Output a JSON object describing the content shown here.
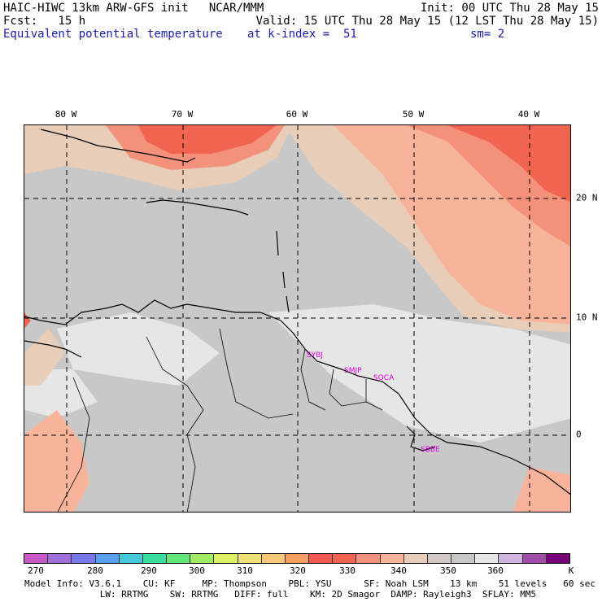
{
  "header": {
    "line1_left": "HAIC-HIWC 13km ARW-GFS init   NCAR/MMM",
    "line1_right": "Init: 00 UTC Thu 28 May 15",
    "line2_left": "Fcst:   15 h",
    "line2_right": "Valid: 15 UTC Thu 28 May 15 (12 LST Thu 28 May 15)",
    "line3_field": "Equivalent potential temperature",
    "line3_level": "at k-index =  51",
    "line3_smooth": "sm= 2"
  },
  "axes": {
    "lon_labels": [
      "80 W",
      "70 W",
      "60 W",
      "50 W",
      "40 W"
    ],
    "lat_labels": [
      "20 N",
      "10 N",
      "0"
    ]
  },
  "sites": [
    "SYBJ",
    "SMJP",
    "SOCA",
    "SBBE"
  ],
  "colorbar": {
    "colors": [
      "#c85ac8",
      "#a070d8",
      "#7878e8",
      "#5aa0f0",
      "#46c8dc",
      "#3cdca0",
      "#64e678",
      "#a0ec64",
      "#dcf064",
      "#f0e078",
      "#f8c878",
      "#f8a064",
      "#f05a50",
      "#f06450",
      "#f4917a",
      "#f8b49a",
      "#e8cdb8",
      "#d2c8c4",
      "#c8c8c8",
      "#e6e6e6",
      "#d2b4e0",
      "#a04ca8",
      "#780078"
    ],
    "labels": [
      "270",
      "280",
      "290",
      "300",
      "310",
      "320",
      "330",
      "340",
      "350",
      "360"
    ],
    "unit": "K"
  },
  "footer": {
    "line1": "Model Info: V3.6.1    CU: KF     MP: Thompson    PBL: YSU      SF: Noah LSM    13 km    51 levels   60 sec",
    "line2": "              LW: RRTMG    SW: RRTMG   DIFF: full    KM: 2D Smagor  DAMP: Rayleigh3  SFLAY: MM5"
  },
  "colors": {
    "warm_dark": "#f05a50",
    "warm_mid": "#f4917a",
    "warm_light": "#f8b49a",
    "tan": "#e8cdb8",
    "gray_dark": "#c8c8c8",
    "gray_light": "#e6e6e6",
    "site_label": "#e000e0",
    "header_blue": "#1a1aa8"
  }
}
